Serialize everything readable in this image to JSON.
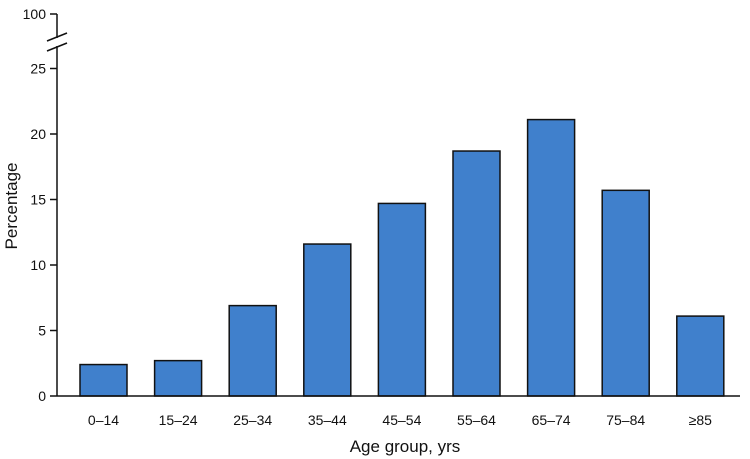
{
  "chart_data": {
    "type": "bar",
    "title": "",
    "xlabel": "Age group, yrs",
    "ylabel": "Percentage",
    "categories": [
      "0–14",
      "15–24",
      "25–34",
      "35–44",
      "45–54",
      "55–64",
      "65–74",
      "75–84",
      "≥85"
    ],
    "values": [
      2.4,
      2.7,
      6.9,
      11.6,
      14.7,
      18.7,
      21.1,
      15.7,
      6.1
    ],
    "ylim": [
      0,
      100
    ],
    "y_axis_break": [
      25,
      100
    ],
    "yticks": [
      0,
      5,
      10,
      15,
      20,
      25,
      100
    ],
    "grid": false,
    "legend": "none",
    "colors": {
      "bar_fill": "#4080cc",
      "bar_stroke": "#111111",
      "axis": "#111111"
    }
  }
}
